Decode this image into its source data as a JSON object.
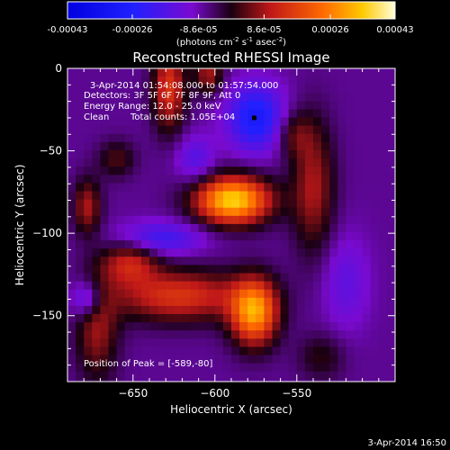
{
  "chart_data": {
    "type": "heatmap",
    "title": "Reconstructed RHESSI Image",
    "xlabel": "Heliocentric X (arcsec)",
    "ylabel": "Heliocentric Y (arcsec)",
    "xlim": [
      -690,
      -490
    ],
    "ylim": [
      -190,
      0
    ],
    "x_ticks": [
      -650,
      -600,
      -550
    ],
    "y_ticks": [
      0,
      -50,
      -100,
      -150
    ],
    "colorbar": {
      "ticks": [
        "-0.00043",
        "-0.00026",
        "-8.6e-05",
        "8.6e-05",
        "0.00026",
        "0.00043"
      ],
      "units_main": "(photons cm",
      "units_exp1": "-2",
      "units_mid": " s",
      "units_exp2": "-1",
      "units_end": " asec",
      "units_exp3": "-2",
      "units_close": ")",
      "range": [
        -0.00043,
        0.00043
      ]
    },
    "annotations": {
      "time": "3-Apr-2014 01:54:08.000 to 01:57:54.000",
      "detectors": "Detectors: 3F 5F 6F 7F 8F 9F, Att 0",
      "energy": "Energy Range: 12.0 - 25.0 keV",
      "algorithm": "Clean",
      "counts": "Total counts: 1.05E+04",
      "peak": "Position of Peak = [-589,-80]"
    },
    "peak_xy": [
      -589,
      -80
    ],
    "sources": [
      {
        "x": -589,
        "y": -80,
        "amp": 0.00043,
        "sx": 16,
        "sy": 10
      },
      {
        "x": -576,
        "y": -148,
        "amp": 0.00036,
        "sx": 10,
        "sy": 14
      },
      {
        "x": -622,
        "y": -138,
        "amp": 0.00022,
        "sx": 28,
        "sy": 11
      },
      {
        "x": -652,
        "y": -118,
        "amp": 0.00018,
        "sx": 12,
        "sy": 9
      },
      {
        "x": -672,
        "y": -158,
        "amp": 0.00015,
        "sx": 9,
        "sy": 22
      },
      {
        "x": -628,
        "y": -12,
        "amp": 0.00022,
        "sx": 7,
        "sy": 18
      },
      {
        "x": -604,
        "y": -4,
        "amp": 0.00016,
        "sx": 6,
        "sy": 8
      },
      {
        "x": -540,
        "y": -72,
        "amp": 0.00016,
        "sx": 9,
        "sy": 28
      },
      {
        "x": -552,
        "y": -40,
        "amp": 0.0001,
        "sx": 8,
        "sy": 10
      },
      {
        "x": -678,
        "y": -84,
        "amp": 0.00016,
        "sx": 6,
        "sy": 12
      },
      {
        "x": -660,
        "y": -55,
        "amp": 0.0001,
        "sx": 8,
        "sy": 8
      },
      {
        "x": -575,
        "y": -30,
        "amp": -0.00022,
        "sx": 12,
        "sy": 14
      },
      {
        "x": -633,
        "y": -103,
        "amp": -0.00014,
        "sx": 18,
        "sy": 7
      },
      {
        "x": -678,
        "y": -140,
        "amp": -0.00016,
        "sx": 7,
        "sy": 8
      },
      {
        "x": -612,
        "y": -55,
        "amp": -0.0001,
        "sx": 8,
        "sy": 10
      },
      {
        "x": -520,
        "y": -130,
        "amp": -8e-05,
        "sx": 10,
        "sy": 20
      },
      {
        "x": -535,
        "y": -175,
        "amp": 8e-05,
        "sx": 10,
        "sy": 10
      }
    ],
    "background": -7e-05
  },
  "footer": {
    "date": "3-Apr-2014 16:50"
  }
}
